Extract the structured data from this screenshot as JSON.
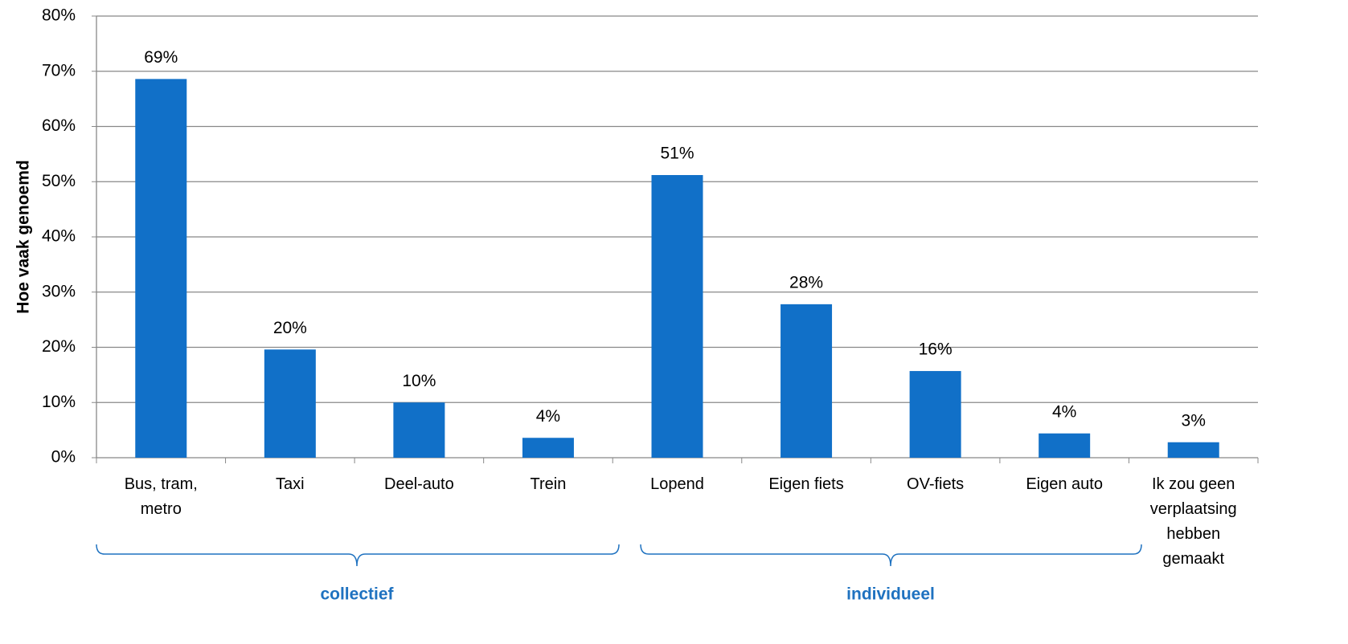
{
  "chart_data": {
    "type": "bar",
    "y_axis_label": "Hoe vaak genoemd",
    "categories": [
      "Bus, tram, metro",
      "Taxi",
      "Deel-auto",
      "Trein",
      "Lopend",
      "Eigen fiets",
      "OV-fiets",
      "Eigen auto",
      "Ik zou geen verplaatsing hebben gemaakt"
    ],
    "values": [
      68.6,
      19.6,
      10.0,
      3.6,
      51.2,
      27.8,
      15.7,
      4.4,
      2.8
    ],
    "value_labels": [
      "69%",
      "20%",
      "10%",
      "4%",
      "51%",
      "28%",
      "16%",
      "4%",
      "3%"
    ],
    "color": "#1170c8",
    "ylim": [
      0,
      80
    ],
    "yticks": [
      {
        "value": 0,
        "label": "0%"
      },
      {
        "value": 10,
        "label": "10%"
      },
      {
        "value": 20,
        "label": "20%"
      },
      {
        "value": 30,
        "label": "30%"
      },
      {
        "value": 40,
        "label": "40%"
      },
      {
        "value": 50,
        "label": "50%"
      },
      {
        "value": 60,
        "label": "60%"
      },
      {
        "value": 70,
        "label": "70%"
      },
      {
        "value": 80,
        "label": "80%"
      }
    ],
    "grid": true,
    "groups": [
      "collectief",
      "individueel"
    ]
  }
}
